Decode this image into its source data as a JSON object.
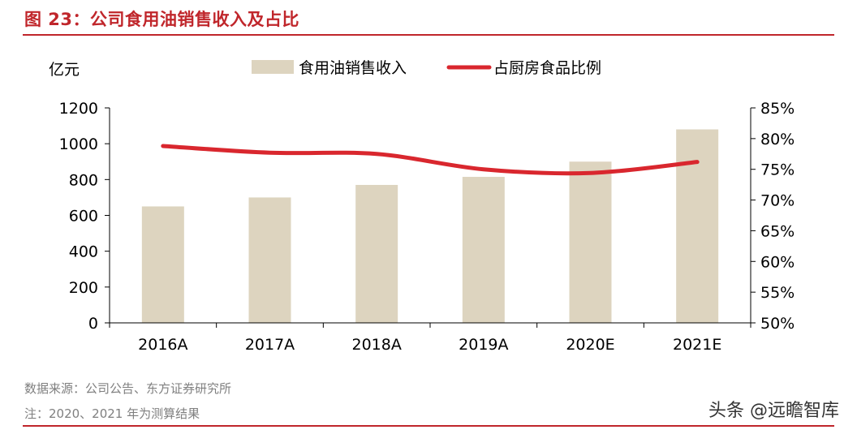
{
  "figure": {
    "title": "图 23：公司食用油销售收入及占比",
    "source_line": "数据来源：公司公告、东方证券研究所",
    "note_line": "注：2020、2021 年为测算结果",
    "watermark": "头条 @远瞻智库"
  },
  "colors": {
    "accent": "#c0262b",
    "bar": "#ddd4bf",
    "line": "#d9272e",
    "axis": "#000000",
    "muted_text": "#7f7f7f"
  },
  "chart_data": {
    "type": "bar",
    "categories": [
      "2016A",
      "2017A",
      "2018A",
      "2019A",
      "2020E",
      "2021E"
    ],
    "series": [
      {
        "name": "食用油销售收入",
        "type": "bar",
        "axis": "left",
        "values": [
          650,
          700,
          770,
          815,
          900,
          1080
        ]
      },
      {
        "name": "占厨房食品比例",
        "type": "line",
        "axis": "right",
        "values": [
          78.8,
          77.7,
          77.5,
          75.0,
          74.4,
          76.2
        ]
      }
    ],
    "y_left": {
      "label": "亿元",
      "min": 0,
      "max": 1200,
      "ticks": [
        0,
        200,
        400,
        600,
        800,
        1000,
        1200
      ]
    },
    "y_right": {
      "label": "",
      "min": 50,
      "max": 85,
      "ticks": [
        "50%",
        "55%",
        "60%",
        "65%",
        "70%",
        "75%",
        "80%",
        "85%"
      ]
    },
    "legend_position": "top-center",
    "grid": false
  }
}
